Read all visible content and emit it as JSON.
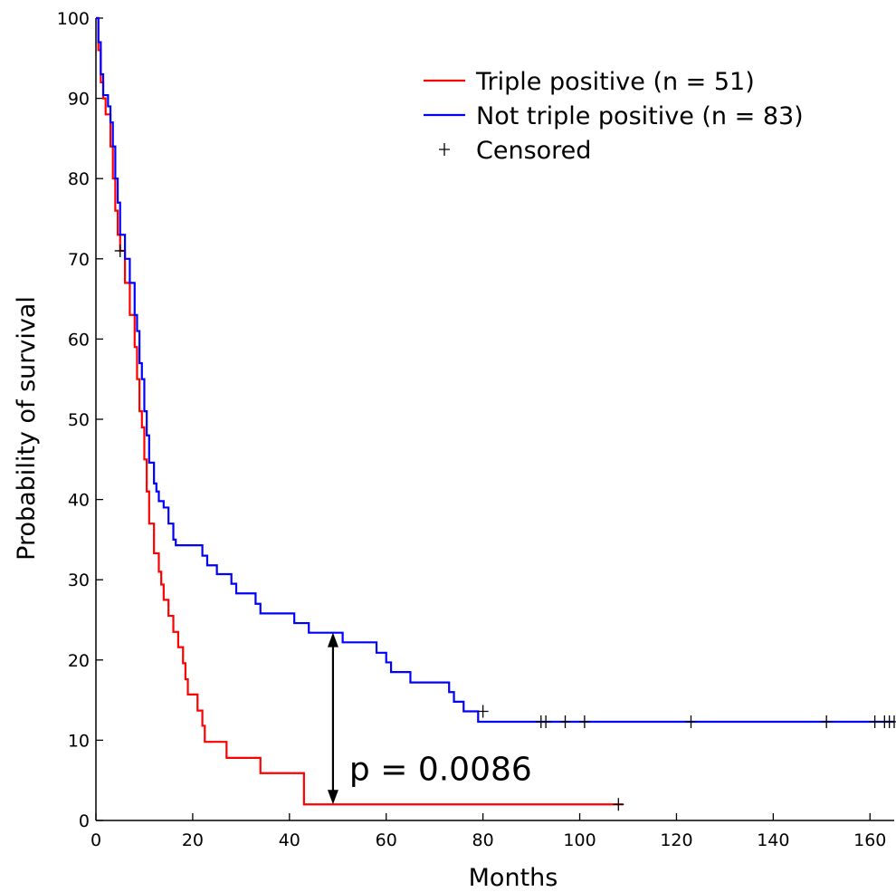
{
  "chart_data": {
    "type": "line",
    "xlabel": "Months",
    "ylabel": "Probability of survival",
    "xlim": [
      0,
      165
    ],
    "ylim": [
      0,
      100
    ],
    "xticks": [
      0,
      20,
      40,
      60,
      80,
      100,
      120,
      140,
      160
    ],
    "yticks": [
      0,
      10,
      20,
      30,
      40,
      50,
      60,
      70,
      80,
      90,
      100
    ],
    "grid": false,
    "legend_placement": "top-right",
    "series": [
      {
        "name": "Triple positive (n = 51)",
        "color": "#ff0000",
        "steps": [
          [
            0,
            100
          ],
          [
            0.5,
            96
          ],
          [
            1,
            92
          ],
          [
            1.5,
            90
          ],
          [
            2,
            88
          ],
          [
            3,
            84
          ],
          [
            3.5,
            80
          ],
          [
            4,
            76
          ],
          [
            4.5,
            73
          ],
          [
            5,
            71
          ],
          [
            6,
            67
          ],
          [
            7,
            63
          ],
          [
            8,
            59
          ],
          [
            8.5,
            55
          ],
          [
            9,
            51
          ],
          [
            9.5,
            49
          ],
          [
            10,
            45
          ],
          [
            10.5,
            41
          ],
          [
            11,
            37
          ],
          [
            12,
            33.3
          ],
          [
            13,
            31
          ],
          [
            13.5,
            29.4
          ],
          [
            14,
            27.5
          ],
          [
            15,
            25.5
          ],
          [
            16,
            23.5
          ],
          [
            17,
            21.6
          ],
          [
            18,
            19.6
          ],
          [
            18.5,
            17.6
          ],
          [
            19,
            15.7
          ],
          [
            21,
            13.7
          ],
          [
            22,
            11.8
          ],
          [
            22.5,
            9.8
          ],
          [
            27,
            7.8
          ],
          [
            34,
            5.9
          ],
          [
            43,
            2
          ],
          [
            109,
            2
          ]
        ],
        "censored": [
          [
            5,
            71
          ],
          [
            108,
            2
          ]
        ]
      },
      {
        "name": "Not triple positive (n = 83)",
        "color": "#0000ff",
        "steps": [
          [
            0,
            100
          ],
          [
            0.5,
            97
          ],
          [
            1,
            93
          ],
          [
            1.5,
            90.4
          ],
          [
            2.5,
            89
          ],
          [
            3,
            87
          ],
          [
            3.5,
            84
          ],
          [
            4,
            80
          ],
          [
            4.5,
            77
          ],
          [
            5,
            73
          ],
          [
            6,
            70
          ],
          [
            7,
            67
          ],
          [
            8,
            63
          ],
          [
            8.5,
            61
          ],
          [
            9,
            57
          ],
          [
            9.5,
            55
          ],
          [
            10,
            51
          ],
          [
            10.5,
            48
          ],
          [
            11,
            44.6
          ],
          [
            12,
            42
          ],
          [
            12.5,
            41
          ],
          [
            13,
            39.8
          ],
          [
            14,
            39
          ],
          [
            15,
            37
          ],
          [
            16,
            35
          ],
          [
            16.5,
            34.3
          ],
          [
            22,
            33
          ],
          [
            23,
            31.8
          ],
          [
            25,
            30.7
          ],
          [
            28,
            29.5
          ],
          [
            29,
            28.3
          ],
          [
            33,
            27
          ],
          [
            34,
            25.8
          ],
          [
            41,
            24.6
          ],
          [
            44,
            23.4
          ],
          [
            51,
            22.2
          ],
          [
            58,
            20.9
          ],
          [
            60,
            19.7
          ],
          [
            61,
            18.5
          ],
          [
            65,
            17.2
          ],
          [
            73,
            16
          ],
          [
            74,
            14.8
          ],
          [
            76,
            13.6
          ],
          [
            79,
            12.3
          ],
          [
            81,
            12.3
          ],
          [
            165,
            12.3
          ]
        ],
        "censored": [
          [
            80,
            13.6
          ],
          [
            92,
            12.3
          ],
          [
            93,
            12.3
          ],
          [
            97,
            12.3
          ],
          [
            101,
            12.3
          ],
          [
            123,
            12.3
          ],
          [
            151,
            12.3
          ],
          [
            161,
            12.3
          ],
          [
            163,
            12.3
          ],
          [
            164,
            12.3
          ],
          [
            165,
            12.3
          ]
        ]
      }
    ],
    "legend": [
      {
        "label": "Triple positive (n = 51)",
        "kind": "line",
        "color": "#ff0000"
      },
      {
        "label": "Not triple positive (n = 83)",
        "kind": "line",
        "color": "#0000ff"
      },
      {
        "label": "Censored",
        "kind": "marker",
        "color": "#000000"
      }
    ],
    "annotation": {
      "text": "p = 0.0086",
      "arrow_x": 49,
      "arrow_y_from": 23.4,
      "arrow_y_to": 2
    }
  }
}
